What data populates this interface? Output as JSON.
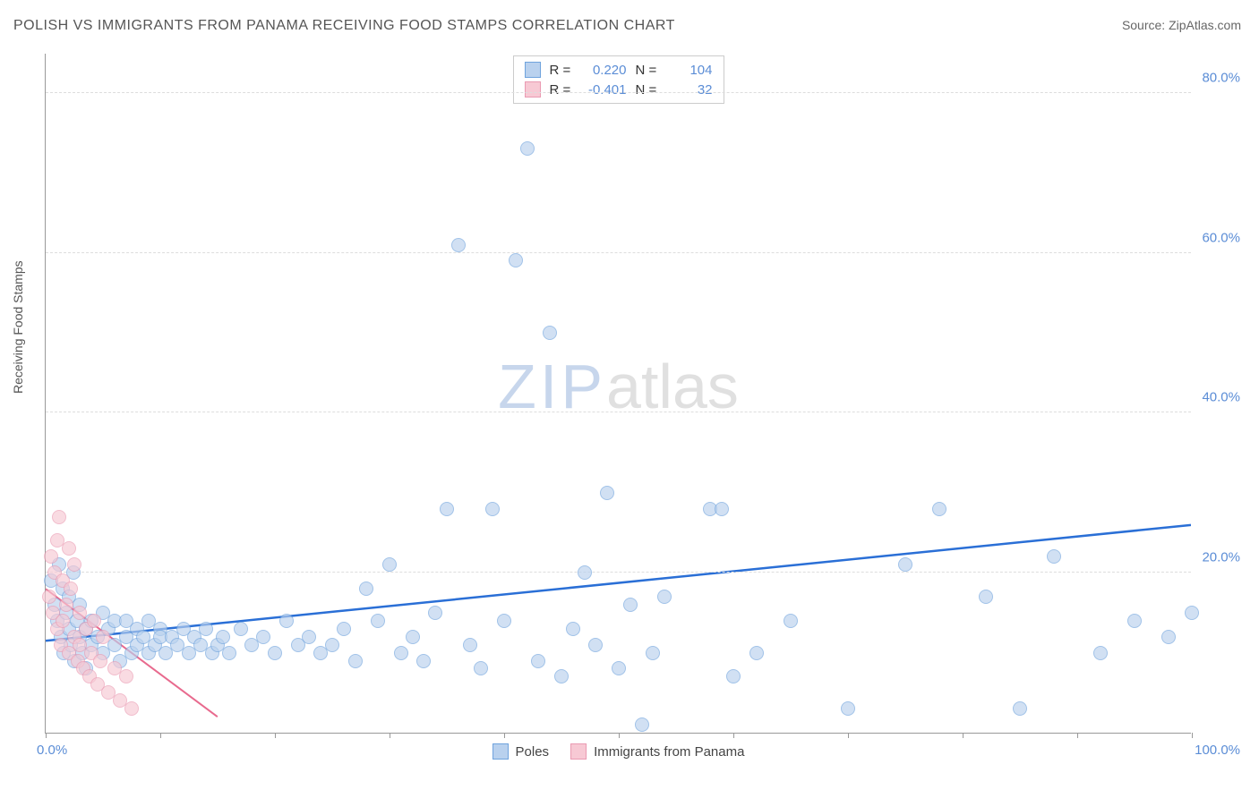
{
  "title": "POLISH VS IMMIGRANTS FROM PANAMA RECEIVING FOOD STAMPS CORRELATION CHART",
  "source_prefix": "Source: ",
  "source_name": "ZipAtlas.com",
  "ylabel": "Receiving Food Stamps",
  "watermark_zip": "ZIP",
  "watermark_atlas": "atlas",
  "chart": {
    "type": "scatter",
    "xlim": [
      0,
      100
    ],
    "ylim": [
      0,
      85
    ],
    "x_tick_step": 10,
    "x_start_label": "0.0%",
    "x_end_label": "100.0%",
    "y_ticks": [
      {
        "v": 20,
        "label": "20.0%"
      },
      {
        "v": 40,
        "label": "40.0%"
      },
      {
        "v": 60,
        "label": "60.0%"
      },
      {
        "v": 80,
        "label": "80.0%"
      }
    ],
    "background_color": "#ffffff",
    "grid_color": "#dddddd",
    "axis_color": "#999999",
    "marker_radius": 8,
    "series": [
      {
        "id": "poles",
        "label": "Poles",
        "fill": "#b9d1ee",
        "stroke": "#6fa3dd",
        "fill_opacity": 0.65,
        "r_value": "0.220",
        "n_value": "104",
        "trend": {
          "x1": 0,
          "y1": 11.5,
          "x2": 100,
          "y2": 26.0,
          "color": "#2a6fd6",
          "width": 2.5
        },
        "points": [
          [
            0.5,
            19
          ],
          [
            0.8,
            16
          ],
          [
            1.0,
            14
          ],
          [
            1.2,
            21
          ],
          [
            1.3,
            12
          ],
          [
            1.5,
            18
          ],
          [
            1.6,
            10
          ],
          [
            1.8,
            15
          ],
          [
            2.0,
            13
          ],
          [
            2.0,
            17
          ],
          [
            2.2,
            11
          ],
          [
            2.4,
            20
          ],
          [
            2.5,
            9
          ],
          [
            2.7,
            14
          ],
          [
            3.0,
            12
          ],
          [
            3.0,
            16
          ],
          [
            3.2,
            10
          ],
          [
            3.5,
            13
          ],
          [
            3.5,
            8
          ],
          [
            4.0,
            14
          ],
          [
            4.0,
            11
          ],
          [
            4.5,
            12
          ],
          [
            5.0,
            15
          ],
          [
            5.0,
            10
          ],
          [
            5.5,
            13
          ],
          [
            6.0,
            11
          ],
          [
            6.0,
            14
          ],
          [
            6.5,
            9
          ],
          [
            7.0,
            12
          ],
          [
            7.0,
            14
          ],
          [
            7.5,
            10
          ],
          [
            8.0,
            13
          ],
          [
            8.0,
            11
          ],
          [
            8.5,
            12
          ],
          [
            9.0,
            14
          ],
          [
            9.0,
            10
          ],
          [
            9.5,
            11
          ],
          [
            10,
            13
          ],
          [
            10,
            12
          ],
          [
            10.5,
            10
          ],
          [
            11,
            12
          ],
          [
            11.5,
            11
          ],
          [
            12,
            13
          ],
          [
            12.5,
            10
          ],
          [
            13,
            12
          ],
          [
            13.5,
            11
          ],
          [
            14,
            13
          ],
          [
            14.5,
            10
          ],
          [
            15,
            11
          ],
          [
            15.5,
            12
          ],
          [
            16,
            10
          ],
          [
            17,
            13
          ],
          [
            18,
            11
          ],
          [
            19,
            12
          ],
          [
            20,
            10
          ],
          [
            21,
            14
          ],
          [
            22,
            11
          ],
          [
            23,
            12
          ],
          [
            24,
            10
          ],
          [
            25,
            11
          ],
          [
            26,
            13
          ],
          [
            27,
            9
          ],
          [
            28,
            18
          ],
          [
            29,
            14
          ],
          [
            30,
            21
          ],
          [
            31,
            10
          ],
          [
            32,
            12
          ],
          [
            33,
            9
          ],
          [
            34,
            15
          ],
          [
            35,
            28
          ],
          [
            36,
            61
          ],
          [
            37,
            11
          ],
          [
            38,
            8
          ],
          [
            39,
            28
          ],
          [
            40,
            14
          ],
          [
            41,
            59
          ],
          [
            42,
            73
          ],
          [
            43,
            9
          ],
          [
            44,
            50
          ],
          [
            45,
            7
          ],
          [
            46,
            13
          ],
          [
            47,
            20
          ],
          [
            48,
            11
          ],
          [
            49,
            30
          ],
          [
            50,
            8
          ],
          [
            51,
            16
          ],
          [
            52,
            1
          ],
          [
            53,
            10
          ],
          [
            54,
            17
          ],
          [
            58,
            28
          ],
          [
            59,
            28
          ],
          [
            60,
            7
          ],
          [
            62,
            10
          ],
          [
            65,
            14
          ],
          [
            70,
            3
          ],
          [
            75,
            21
          ],
          [
            78,
            28
          ],
          [
            82,
            17
          ],
          [
            85,
            3
          ],
          [
            88,
            22
          ],
          [
            92,
            10
          ],
          [
            95,
            14
          ],
          [
            98,
            12
          ],
          [
            100,
            15
          ]
        ]
      },
      {
        "id": "panama",
        "label": "Immigrants from Panama",
        "fill": "#f7c9d4",
        "stroke": "#ea9ab2",
        "fill_opacity": 0.65,
        "r_value": "-0.401",
        "n_value": "32",
        "trend": {
          "x1": 0,
          "y1": 18.0,
          "x2": 15,
          "y2": 2.0,
          "color": "#e86a8e",
          "width": 2
        },
        "points": [
          [
            0.3,
            17
          ],
          [
            0.5,
            22
          ],
          [
            0.6,
            15
          ],
          [
            0.8,
            20
          ],
          [
            1.0,
            13
          ],
          [
            1.0,
            24
          ],
          [
            1.2,
            27
          ],
          [
            1.3,
            11
          ],
          [
            1.5,
            19
          ],
          [
            1.5,
            14
          ],
          [
            1.8,
            16
          ],
          [
            2.0,
            23
          ],
          [
            2.0,
            10
          ],
          [
            2.2,
            18
          ],
          [
            2.5,
            12
          ],
          [
            2.5,
            21
          ],
          [
            2.8,
            9
          ],
          [
            3.0,
            15
          ],
          [
            3.0,
            11
          ],
          [
            3.3,
            8
          ],
          [
            3.5,
            13
          ],
          [
            3.8,
            7
          ],
          [
            4.0,
            10
          ],
          [
            4.2,
            14
          ],
          [
            4.5,
            6
          ],
          [
            4.8,
            9
          ],
          [
            5.0,
            12
          ],
          [
            5.5,
            5
          ],
          [
            6.0,
            8
          ],
          [
            6.5,
            4
          ],
          [
            7.0,
            7
          ],
          [
            7.5,
            3
          ]
        ]
      }
    ],
    "legend_top": {
      "r_label": "R =",
      "n_label": "N ="
    }
  }
}
